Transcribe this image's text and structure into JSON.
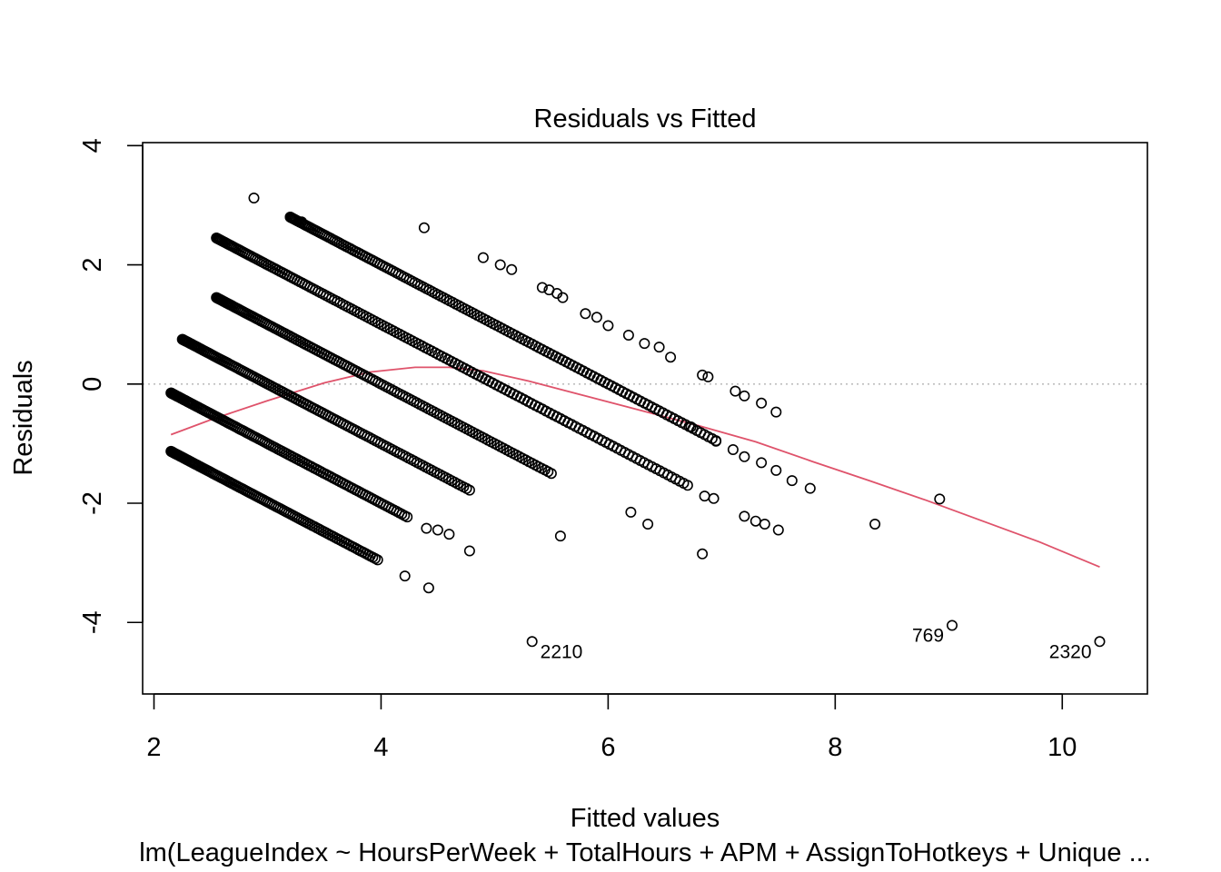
{
  "chart_data": {
    "type": "scatter",
    "title": "Residuals vs Fitted",
    "xlabel": "Fitted values",
    "ylabel": "Residuals",
    "subtitle": "lm(LeagueIndex ~ HoursPerWeek + TotalHours + APM + AssignToHotkeys + Unique ...",
    "xlim": [
      1.9,
      10.75
    ],
    "ylim": [
      -5.2,
      4.05
    ],
    "xticks": [
      2,
      4,
      6,
      8,
      10
    ],
    "yticks": [
      -4,
      -2,
      0,
      2,
      4
    ],
    "grid": false,
    "reference_line_y": 0,
    "colors": {
      "points": "#000000",
      "smooth": "#DF536B",
      "reference": "#BEBEBE"
    },
    "bands": [
      {
        "x_start": 2.15,
        "x_end": 3.97,
        "y_start": -1.13,
        "count": 115
      },
      {
        "x_start": 2.15,
        "x_end": 4.23,
        "y_start": -0.15,
        "count": 120
      },
      {
        "x_start": 2.25,
        "x_end": 4.78,
        "y_start": 0.75,
        "count": 130
      },
      {
        "x_start": 2.55,
        "x_end": 5.5,
        "y_start": 1.45,
        "count": 140
      },
      {
        "x_start": 2.55,
        "x_end": 6.7,
        "y_start": 2.45,
        "count": 160
      },
      {
        "x_start": 3.2,
        "x_end": 6.95,
        "y_start": 2.8,
        "count": 150
      }
    ],
    "extra_points": [
      [
        2.88,
        3.12
      ],
      [
        3.2,
        2.8
      ],
      [
        3.3,
        2.72
      ],
      [
        4.38,
        2.62
      ],
      [
        4.9,
        2.12
      ],
      [
        5.05,
        2.0
      ],
      [
        5.15,
        1.92
      ],
      [
        5.42,
        1.62
      ],
      [
        5.48,
        1.58
      ],
      [
        5.55,
        1.52
      ],
      [
        5.6,
        1.45
      ],
      [
        5.8,
        1.18
      ],
      [
        5.9,
        1.12
      ],
      [
        6.0,
        0.98
      ],
      [
        6.18,
        0.82
      ],
      [
        6.32,
        0.68
      ],
      [
        6.45,
        0.62
      ],
      [
        6.55,
        0.45
      ],
      [
        6.83,
        0.15
      ],
      [
        6.88,
        0.12
      ],
      [
        7.12,
        -0.12
      ],
      [
        7.2,
        -0.2
      ],
      [
        7.35,
        -0.32
      ],
      [
        7.48,
        -0.47
      ],
      [
        6.73,
        -0.72
      ],
      [
        6.95,
        -0.96
      ],
      [
        7.1,
        -1.1
      ],
      [
        7.2,
        -1.22
      ],
      [
        7.35,
        -1.32
      ],
      [
        7.48,
        -1.45
      ],
      [
        7.62,
        -1.62
      ],
      [
        7.78,
        -1.75
      ],
      [
        6.85,
        -1.88
      ],
      [
        6.93,
        -1.92
      ],
      [
        7.2,
        -2.22
      ],
      [
        7.3,
        -2.3
      ],
      [
        7.38,
        -2.35
      ],
      [
        7.5,
        -2.45
      ],
      [
        6.35,
        -2.35
      ],
      [
        6.83,
        -2.85
      ],
      [
        8.35,
        -2.35
      ],
      [
        8.92,
        -1.93
      ],
      [
        4.21,
        -3.22
      ],
      [
        4.42,
        -3.42
      ],
      [
        5.58,
        -2.55
      ],
      [
        4.4,
        -2.42
      ],
      [
        4.5,
        -2.45
      ],
      [
        4.6,
        -2.52
      ],
      [
        4.78,
        -2.8
      ],
      [
        6.2,
        -2.15
      ]
    ],
    "labeled_points": [
      {
        "x": 5.33,
        "y": -4.32,
        "label": "2210",
        "label_side": "right"
      },
      {
        "x": 9.03,
        "y": -4.05,
        "label": "769",
        "label_side": "left"
      },
      {
        "x": 10.33,
        "y": -4.32,
        "label": "2320",
        "label_side": "left"
      }
    ],
    "smooth_line": {
      "x": [
        2.15,
        2.5,
        3.0,
        3.5,
        3.9,
        4.3,
        4.6,
        4.9,
        5.3,
        5.8,
        6.3,
        6.8,
        7.3,
        7.8,
        8.3,
        8.8,
        9.3,
        9.8,
        10.33
      ],
      "y": [
        -0.85,
        -0.6,
        -0.28,
        0.02,
        0.2,
        0.28,
        0.28,
        0.22,
        0.05,
        -0.2,
        -0.45,
        -0.7,
        -0.97,
        -1.3,
        -1.62,
        -1.95,
        -2.3,
        -2.65,
        -3.07
      ]
    }
  }
}
